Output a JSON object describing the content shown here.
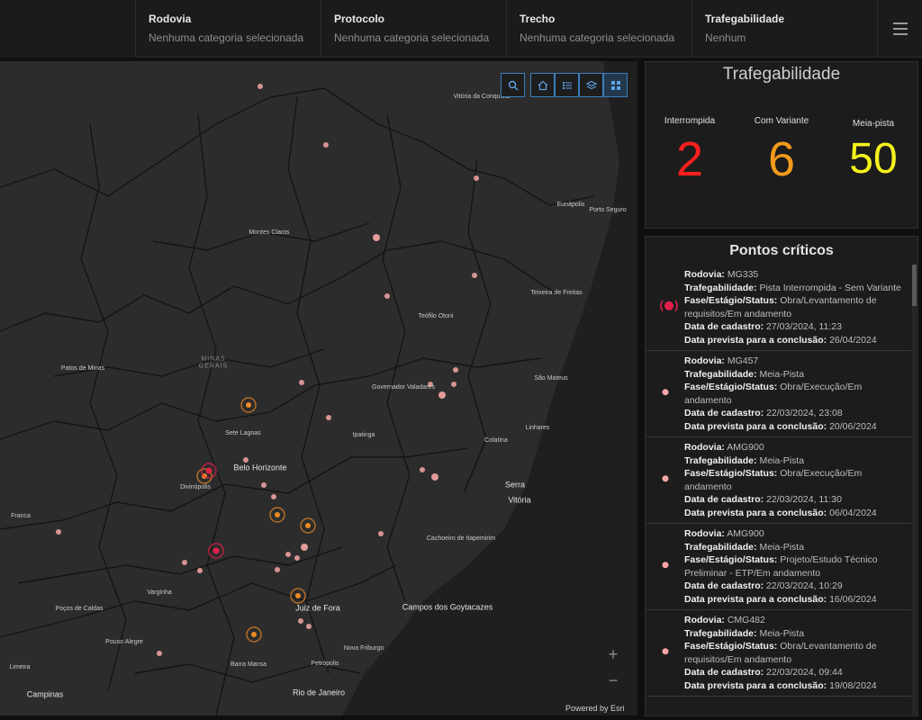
{
  "filters": [
    {
      "title": "Rodovia",
      "value": "Nenhuma categoria selecionada"
    },
    {
      "title": "Protocolo",
      "value": "Nenhuma categoria selecionada"
    },
    {
      "title": "Trecho",
      "value": "Nenhuma categoria selecionada"
    },
    {
      "title": "Trafegabilidade",
      "value": "Nenhum"
    }
  ],
  "trafegabilidade": {
    "title": "Trafegabilidade",
    "kpis": [
      {
        "label": "Interrompida",
        "value": "2",
        "color": "#ff1f1f"
      },
      {
        "label": "Com Variante",
        "value": "6",
        "color": "#f39a1c"
      },
      {
        "label": "Meia-pista",
        "value": "50",
        "color": "#f5f21d"
      }
    ]
  },
  "pontos_criticos": {
    "title": "Pontos críticos",
    "labels": {
      "rodovia": "Rodovia:",
      "trafegabilidade": "Trafegabilidade:",
      "fase": "Fase/Estágio/Status:",
      "cadastro": "Data de cadastro:",
      "prevista": "Data prevista para a conclusão:"
    },
    "items": [
      {
        "rodovia": "MG335",
        "trafegabilidade": "Pista Interrompida - Sem Variante",
        "fase": "Obra/Levantamento de requisitos/Em andamento",
        "cadastro": "27/03/2024, 11:23",
        "prevista": "26/04/2024",
        "icon": "interrupted-marker-icon"
      },
      {
        "rodovia": "MG457",
        "trafegabilidade": "Meia-Pista",
        "fase": "Obra/Execução/Em andamento",
        "cadastro": "22/03/2024, 23:08",
        "prevista": "20/06/2024",
        "icon": "half-lane-marker-icon"
      },
      {
        "rodovia": "AMG900",
        "trafegabilidade": "Meia-Pista",
        "fase": "Obra/Execução/Em andamento",
        "cadastro": "22/03/2024, 11:30",
        "prevista": "06/04/2024",
        "icon": "half-lane-marker-icon"
      },
      {
        "rodovia": "AMG900",
        "trafegabilidade": "Meia-Pista",
        "fase": "Projeto/Estudo Técnico Preliminar - ETP/Em andamento",
        "cadastro": "22/03/2024, 10:29",
        "prevista": "16/06/2024",
        "icon": "half-lane-marker-icon"
      },
      {
        "rodovia": "CMG482",
        "trafegabilidade": "Meia-Pista",
        "fase": "Obra/Levantamento de requisitos/Em andamento",
        "cadastro": "22/03/2024, 09:44",
        "prevista": "19/08/2024",
        "icon": "half-lane-marker-icon"
      }
    ]
  },
  "map": {
    "powered_by": "Powered by Esri",
    "state_label": "MINAS\nGERAIS",
    "city_labels": [
      "Vitória da Conquista",
      "Eunápolis",
      "Porto Seguro",
      "Montes Claros",
      "Teixeira de Freitas",
      "Teófilo Otoni",
      "Patos de Minas",
      "Governador Valadares",
      "São Mateus",
      "Sete Lagoas",
      "Belo Horizonte",
      "Ipatinga",
      "Linhares",
      "Colatina",
      "Divinópolis",
      "Serra",
      "Vitória",
      "Franca",
      "Cachoeiro de Itapemirim",
      "Varginha",
      "Juiz de Fora",
      "Poços de Caldas",
      "Campos dos Goytacazes",
      "Pouso Alegre",
      "Barra Mansa",
      "Petrópolis",
      "Nova Friburgo",
      "Limeira",
      "Campinas",
      "Rio de Janeiro"
    ],
    "tools": [
      "search-icon",
      "home-icon",
      "legend-list-icon",
      "layers-icon",
      "basemap-grid-icon"
    ],
    "zoom_in": "+",
    "zoom_out": "−"
  }
}
